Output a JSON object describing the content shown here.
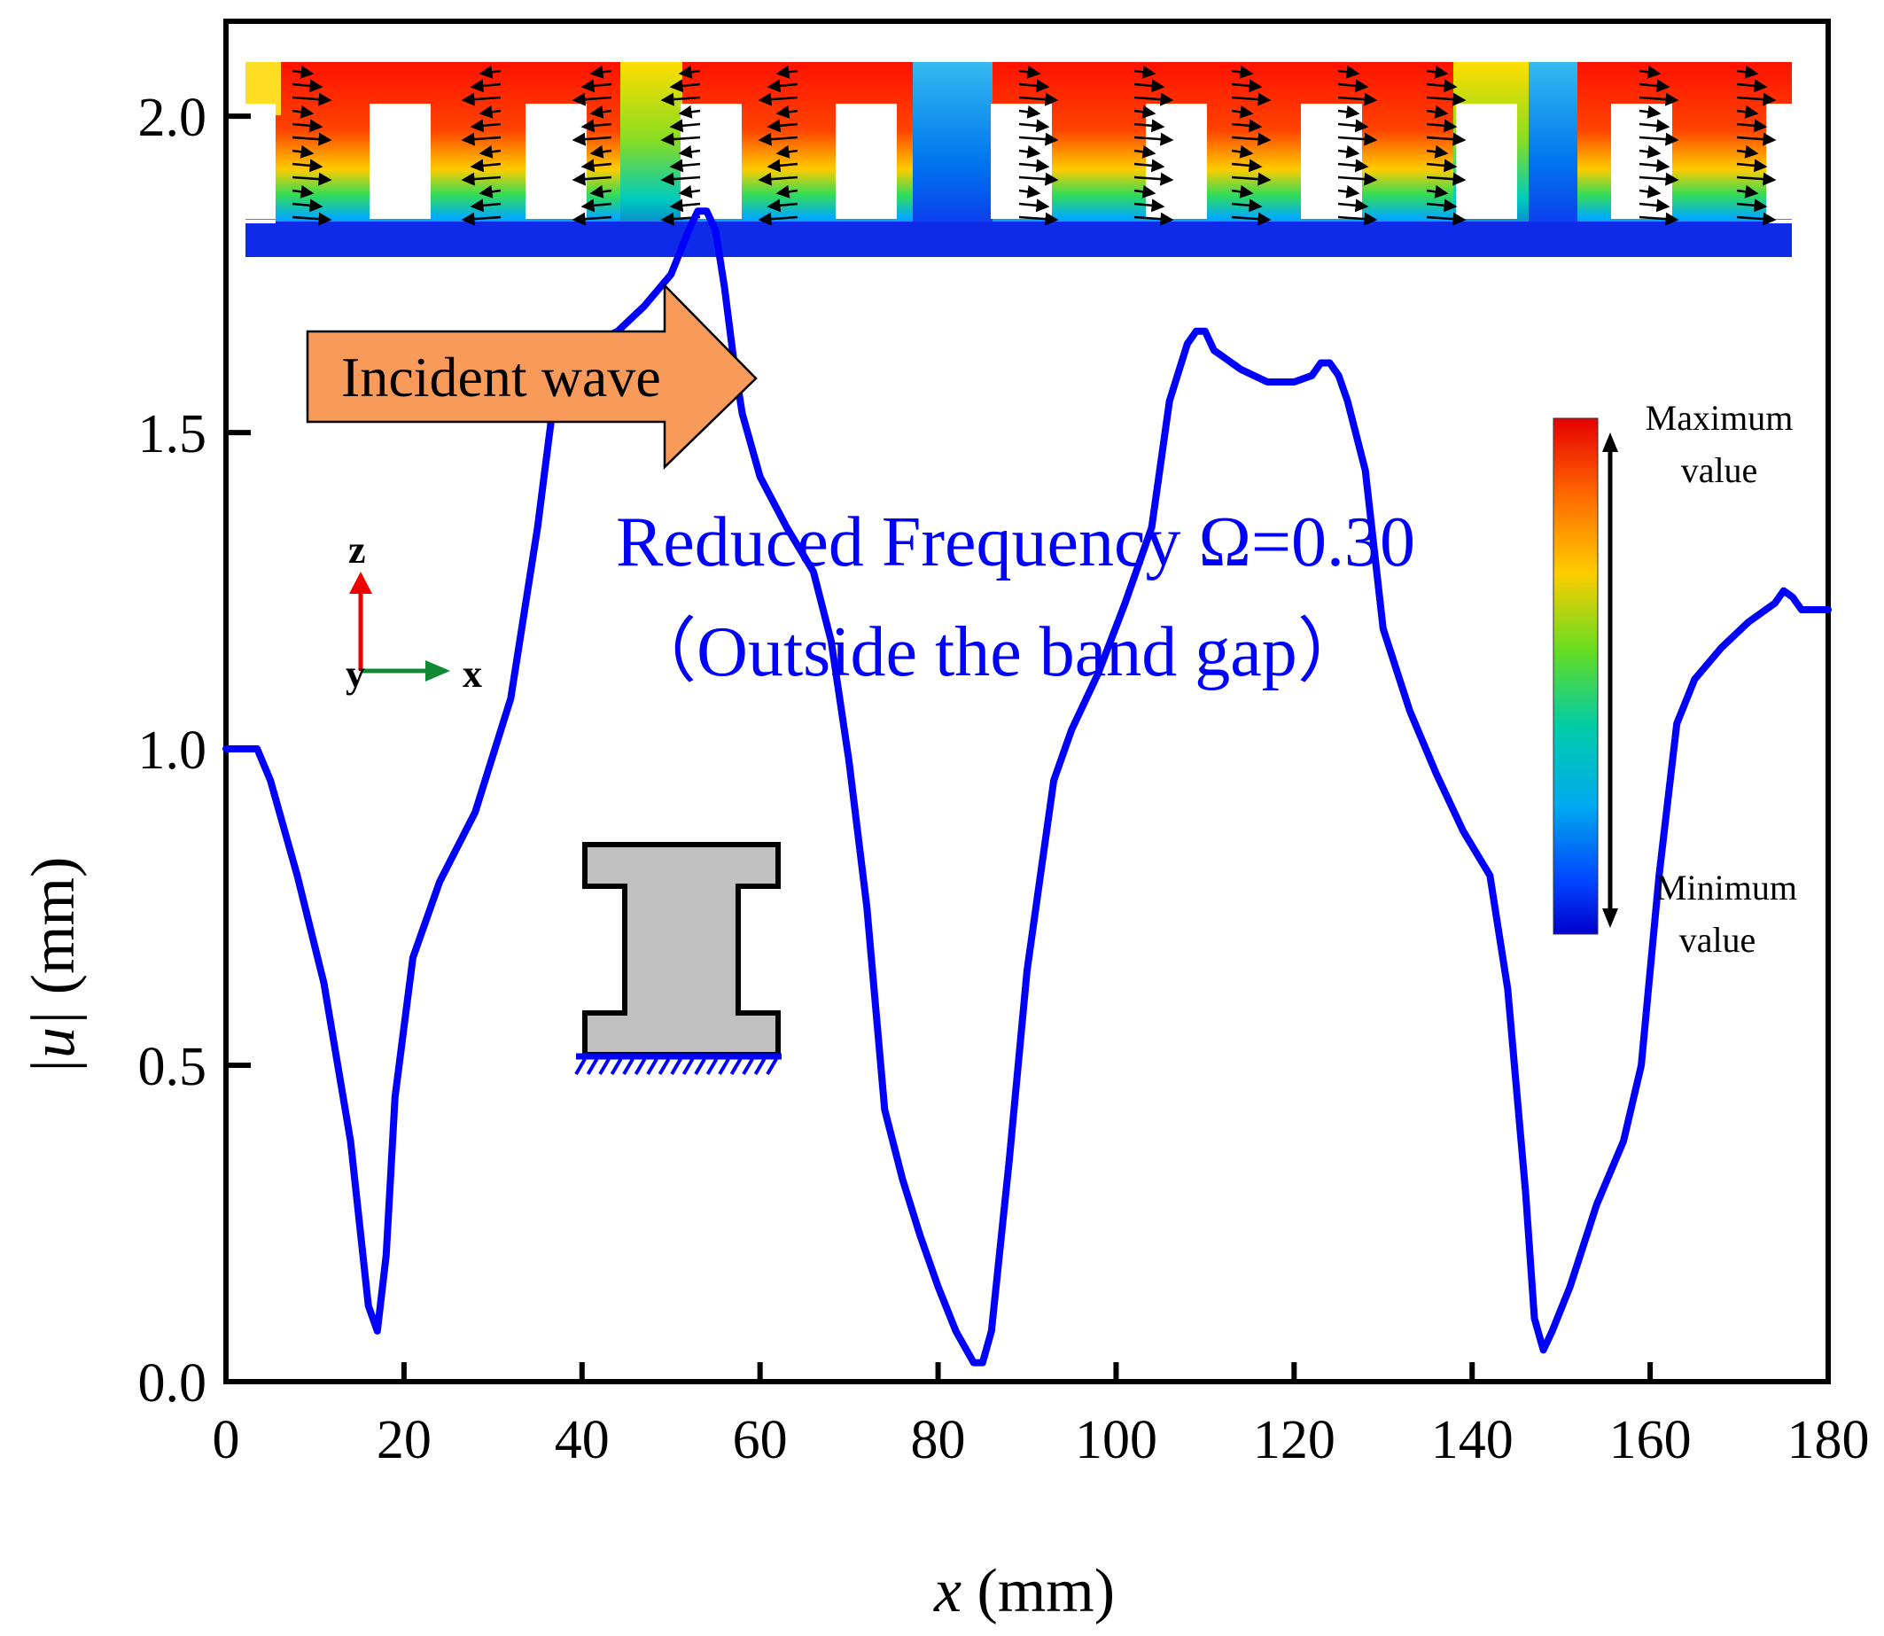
{
  "chart_data": {
    "type": "line",
    "title": "",
    "annotation_title": "Reduced Frequency Ω=0.30",
    "annotation_subtitle": "（Outside the band gap）",
    "incident_label": "Incident wave",
    "xlabel_var": "x",
    "xlabel_unit": " (mm)",
    "ylabel_var": "|u|",
    "ylabel_unit": " (mm)",
    "xlim": [
      0,
      180
    ],
    "ylim": [
      0,
      2.15
    ],
    "x_ticks": [
      0,
      20,
      40,
      60,
      80,
      100,
      120,
      140,
      160,
      180
    ],
    "x_tick_labels": [
      "0",
      "20",
      "40",
      "60",
      "80",
      "100",
      "120",
      "140",
      "160",
      "180"
    ],
    "y_ticks": [
      0,
      0.5,
      1.0,
      1.5,
      2.0
    ],
    "y_tick_labels": [
      "0.0",
      "0.5",
      "1.0",
      "1.5",
      "2.0"
    ],
    "colorbar": {
      "max_label_line1": "Maximum",
      "max_label_line2": "value",
      "min_label_line1": "Minimum",
      "min_label_line2": "value"
    },
    "axes_triad": {
      "z": "z",
      "y": "y",
      "x": "x"
    },
    "series": [
      {
        "name": "|u|",
        "color": "#0000ff",
        "x": [
          0,
          2,
          3.5,
          5,
          8,
          11,
          14,
          16,
          17,
          18,
          19,
          21,
          24,
          28,
          32,
          35,
          37,
          39,
          41,
          44,
          47,
          50,
          52,
          53,
          54,
          55,
          56,
          57,
          58,
          60,
          63,
          66,
          68,
          70,
          72,
          74,
          76,
          78,
          80,
          82,
          84,
          85,
          86,
          88,
          90,
          93,
          95,
          98,
          101,
          104,
          106,
          108,
          109,
          110,
          111,
          112,
          114,
          117,
          120,
          122,
          123,
          124,
          125,
          126,
          128,
          130,
          133,
          136,
          139,
          142,
          144,
          146,
          147,
          148,
          149,
          151,
          154,
          157,
          159,
          161,
          163,
          165,
          168,
          171,
          174,
          175,
          176,
          177,
          178,
          180
        ],
        "y": [
          1.0,
          1.0,
          1.0,
          0.95,
          0.8,
          0.63,
          0.38,
          0.12,
          0.08,
          0.2,
          0.45,
          0.67,
          0.79,
          0.9,
          1.08,
          1.35,
          1.57,
          1.63,
          1.64,
          1.66,
          1.7,
          1.75,
          1.82,
          1.85,
          1.85,
          1.82,
          1.73,
          1.62,
          1.53,
          1.43,
          1.35,
          1.28,
          1.17,
          0.98,
          0.75,
          0.43,
          0.32,
          0.23,
          0.15,
          0.08,
          0.03,
          0.03,
          0.08,
          0.35,
          0.65,
          0.95,
          1.03,
          1.12,
          1.23,
          1.35,
          1.55,
          1.64,
          1.66,
          1.66,
          1.63,
          1.62,
          1.6,
          1.58,
          1.58,
          1.59,
          1.61,
          1.61,
          1.59,
          1.55,
          1.44,
          1.19,
          1.06,
          0.96,
          0.87,
          0.8,
          0.62,
          0.3,
          0.1,
          0.05,
          0.08,
          0.15,
          0.28,
          0.38,
          0.5,
          0.8,
          1.04,
          1.11,
          1.16,
          1.2,
          1.23,
          1.25,
          1.24,
          1.22,
          1.22,
          1.22
        ]
      }
    ]
  }
}
